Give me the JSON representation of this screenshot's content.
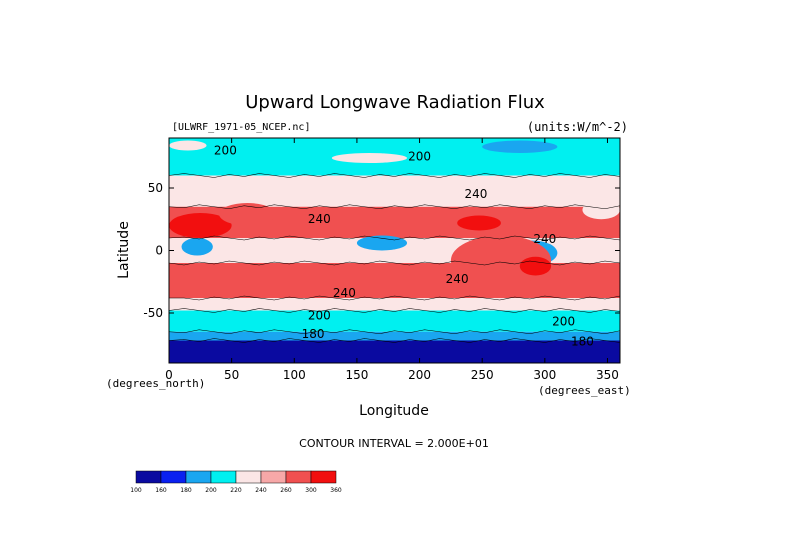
{
  "chart_data": {
    "type": "heatmap",
    "title": "Upward Longwave Radiation Flux",
    "file_label": "[ULWRF_1971-05_NCEP.nc]",
    "units_label": "(units:W/m^-2)",
    "xlabel": "Longitude",
    "ylabel": "Latitude",
    "x_unit_label": "(degrees_east)",
    "y_unit_label": "(degrees_north)",
    "xlim": [
      0,
      360
    ],
    "ylim": [
      -90,
      90
    ],
    "x_ticks": [
      0,
      50,
      100,
      150,
      200,
      250,
      300,
      350
    ],
    "y_ticks": [
      50,
      0,
      -50
    ],
    "contour_interval_label": "CONTOUR INTERVAL = 2.000E+01",
    "contour_labels": [
      {
        "text": "200",
        "lon": 45,
        "lat": 77
      },
      {
        "text": "200",
        "lon": 200,
        "lat": 72
      },
      {
        "text": "240",
        "lon": 245,
        "lat": 42
      },
      {
        "text": "240",
        "lon": 120,
        "lat": 22
      },
      {
        "text": "240",
        "lon": 300,
        "lat": 6
      },
      {
        "text": "240",
        "lon": 140,
        "lat": -37
      },
      {
        "text": "240",
        "lon": 230,
        "lat": -26
      },
      {
        "text": "200",
        "lon": 120,
        "lat": -55
      },
      {
        "text": "200",
        "lon": 315,
        "lat": -60
      },
      {
        "text": "180",
        "lon": 115,
        "lat": -70
      },
      {
        "text": "180",
        "lon": 330,
        "lat": -76
      }
    ],
    "colorbar": {
      "levels": [
        "100",
        "160",
        "180",
        "200",
        "220",
        "240",
        "260",
        "300",
        "360"
      ],
      "colors": [
        "#0a0aa0",
        "#0a20f0",
        "#1aa6f0",
        "#00f0f0",
        "#fbe6e6",
        "#f7a8a8",
        "#f05050",
        "#f20f0f"
      ]
    },
    "field_bands": [
      {
        "lat_top": 90,
        "lat_bottom": 60,
        "level": 3
      },
      {
        "lat_top": 60,
        "lat_bottom": 35,
        "level": 4
      },
      {
        "lat_top": 35,
        "lat_bottom": 10,
        "level": 6
      },
      {
        "lat_top": 10,
        "lat_bottom": -10,
        "level": 4
      },
      {
        "lat_top": -10,
        "lat_bottom": -38,
        "level": 6
      },
      {
        "lat_top": -38,
        "lat_bottom": -48,
        "level": 4
      },
      {
        "lat_top": -48,
        "lat_bottom": -65,
        "level": 3
      },
      {
        "lat_top": -65,
        "lat_bottom": -72,
        "level": 2
      },
      {
        "lat_top": -72,
        "lat_bottom": -90,
        "level": 0
      }
    ],
    "field_patches": [
      {
        "lon": 0,
        "lat": 30,
        "w": 50,
        "h": 20,
        "level": 7
      },
      {
        "lon": 40,
        "lat": 38,
        "w": 45,
        "h": 18,
        "level": 6
      },
      {
        "lon": 230,
        "lat": 28,
        "w": 35,
        "h": 12,
        "level": 7
      },
      {
        "lon": 10,
        "lat": 10,
        "w": 25,
        "h": 14,
        "level": 2
      },
      {
        "lon": 150,
        "lat": 12,
        "w": 40,
        "h": 12,
        "level": 2
      },
      {
        "lon": 270,
        "lat": 8,
        "w": 40,
        "h": 20,
        "level": 2
      },
      {
        "lon": 225,
        "lat": 12,
        "w": 80,
        "h": 40,
        "level": 6
      },
      {
        "lon": 280,
        "lat": -5,
        "w": 25,
        "h": 15,
        "level": 7
      },
      {
        "lon": 130,
        "lat": 78,
        "w": 60,
        "h": 8,
        "level": 4
      },
      {
        "lon": 250,
        "lat": 88,
        "w": 60,
        "h": 10,
        "level": 2
      },
      {
        "lon": 0,
        "lat": 88,
        "w": 30,
        "h": 8,
        "level": 4
      },
      {
        "lon": 330,
        "lat": 40,
        "w": 30,
        "h": 15,
        "level": 4
      }
    ]
  }
}
